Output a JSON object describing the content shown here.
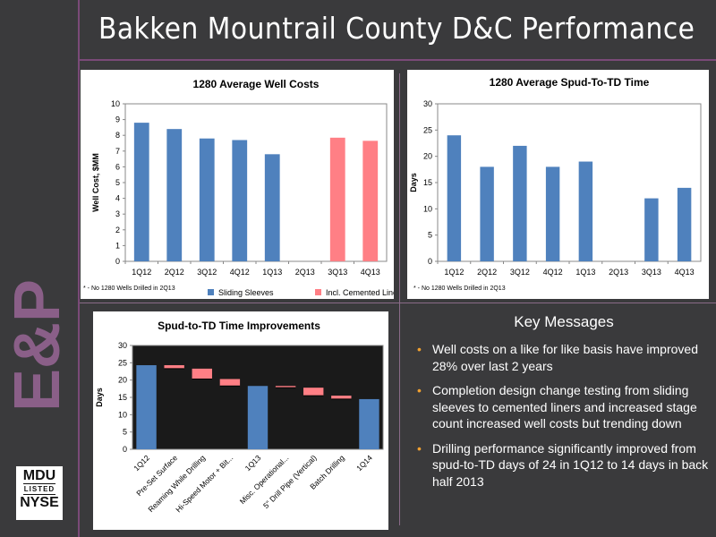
{
  "header": {
    "title": "Bakken Mountrail County D&C Performance"
  },
  "logo": {
    "line1": "MDU",
    "line2": "LISTED",
    "line3": "NYSE",
    "side_text": "E&P"
  },
  "colors": {
    "accent": "#7a4a78",
    "bar_blue": "#4f81bd",
    "bar_red": "#ff7f85",
    "background": "#3a3a3c",
    "bullet": "#f0a030"
  },
  "key_messages": {
    "title": "Key Messages",
    "items": [
      "Well costs on a like for like basis have improved 28% over last 2 years",
      "Completion design change testing from sliding sleeves to cemented liners and increased stage count increased well costs but trending down",
      "Drilling performance significantly improved from spud-to-TD days of 24 in 1Q12 to 14 days in back half 2013"
    ]
  },
  "chart_data": [
    {
      "type": "bar",
      "title": "1280 Average Well Costs",
      "xlabel": "",
      "ylabel": "Well Cost, $MM",
      "ylim": [
        0,
        10
      ],
      "yticks": [
        "0",
        "1",
        "2",
        "3",
        "4",
        "5",
        "6",
        "7",
        "8",
        "9",
        "10"
      ],
      "categories": [
        "1Q12",
        "2Q12",
        "3Q12",
        "4Q12",
        "1Q13",
        "2Q13",
        "3Q13",
        "4Q13"
      ],
      "series": [
        {
          "name": "Sliding Sleeves",
          "color": "#4f81bd",
          "values": [
            8.8,
            8.4,
            7.8,
            7.7,
            6.8,
            null,
            null,
            null
          ]
        },
        {
          "name": "Incl. Cemented Liners",
          "color": "#ff7f85",
          "values": [
            null,
            null,
            null,
            null,
            null,
            null,
            7.85,
            7.65
          ]
        }
      ],
      "legend": "bottom",
      "grid": false,
      "footnote": "* - No 1280 Wells Drilled in 2Q13"
    },
    {
      "type": "bar",
      "title": "1280 Average Spud-To-TD Time",
      "xlabel": "",
      "ylabel": "Days",
      "ylim": [
        0,
        30
      ],
      "yticks": [
        "0",
        "5",
        "10",
        "15",
        "20",
        "25",
        "30"
      ],
      "categories": [
        "1Q12",
        "2Q12",
        "3Q12",
        "4Q12",
        "1Q13",
        "2Q13",
        "3Q13",
        "4Q13"
      ],
      "series": [
        {
          "name": "",
          "color": "#4f81bd",
          "values": [
            24,
            18,
            22,
            18,
            19,
            null,
            12,
            14
          ]
        }
      ],
      "grid": false,
      "footnote": "* - No 1280 Wells Drilled in 2Q13"
    },
    {
      "type": "bar",
      "title": "Spud-to-TD Time Improvements",
      "xlabel": "",
      "ylabel": "Days",
      "ylim": [
        0,
        30
      ],
      "yticks": [
        "0",
        "5",
        "10",
        "15",
        "20",
        "25",
        "30"
      ],
      "categories": [
        "1Q12",
        "Pre-Set Surface",
        "Reaming While Drilling",
        "Hi-Speed Motor + Bit...",
        "1Q13",
        "Misc. Operational...",
        "5\" Drill Pipe (Vertical)",
        "Batch Drilling",
        "1Q14"
      ],
      "bars": [
        {
          "kind": "total",
          "value": 24.3
        },
        {
          "kind": "step",
          "from": 24.3,
          "to": 23.3
        },
        {
          "kind": "step",
          "from": 23.3,
          "to": 20.3
        },
        {
          "kind": "step",
          "from": 20.3,
          "to": 18.3
        },
        {
          "kind": "total",
          "value": 18.3
        },
        {
          "kind": "step",
          "from": 18.3,
          "to": 17.8
        },
        {
          "kind": "step",
          "from": 17.8,
          "to": 15.5
        },
        {
          "kind": "step",
          "from": 15.5,
          "to": 14.5
        },
        {
          "kind": "total",
          "value": 14.5
        }
      ],
      "grid": false
    }
  ]
}
